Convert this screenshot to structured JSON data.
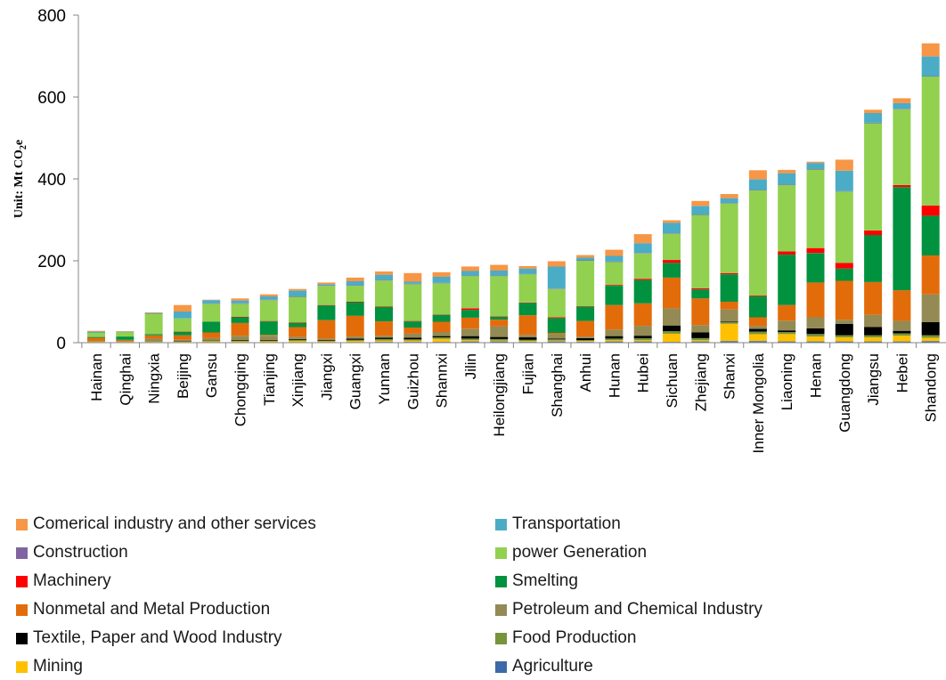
{
  "chart_data": {
    "type": "bar",
    "stacked": true,
    "ylabel": "Unit: Mt CO2e",
    "ylim": [
      0,
      800
    ],
    "yticks": [
      0,
      200,
      400,
      600,
      800
    ],
    "categories": [
      "Hainan",
      "Qinghai",
      "Ningxia",
      "Beijing",
      "Gansu",
      "Chongqing",
      "Tianjing",
      "Xinjiang",
      "Jiangxi",
      "Guangxi",
      "Yunnan",
      "Guizhou",
      "Shannxi",
      "Jilin",
      "Heilongjiang",
      "Fujian",
      "Shanghai",
      "Anhui",
      "Hunan",
      "Hubei",
      "Sichuan",
      "Zhejiang",
      "Shanxi",
      "Inner Mongolia",
      "Liaoning",
      "Henan",
      "Guangdong",
      "Jiangsu",
      "Hebei",
      "Shandong"
    ],
    "series": [
      {
        "name": "Agriculture",
        "color": "#3d6aa8",
        "values": [
          1,
          1,
          1,
          1,
          1,
          1,
          1,
          1,
          1,
          1,
          2,
          2,
          2,
          3,
          3,
          2,
          3,
          2,
          3,
          3,
          2,
          3,
          4,
          4,
          3,
          3,
          3,
          3,
          3,
          4
        ]
      },
      {
        "name": "Mining",
        "color": "#ffc000",
        "values": [
          1,
          1,
          1,
          1,
          2,
          2,
          2,
          3,
          2,
          3,
          3,
          3,
          7,
          3,
          2,
          2,
          2,
          2,
          3,
          3,
          20,
          3,
          42,
          17,
          18,
          12,
          10,
          10,
          14,
          8
        ]
      },
      {
        "name": "Food Production",
        "color": "#77933c",
        "values": [
          1,
          1,
          1,
          1,
          2,
          2,
          2,
          3,
          2,
          3,
          4,
          3,
          4,
          4,
          4,
          3,
          3,
          2,
          4,
          5,
          6,
          5,
          4,
          6,
          5,
          6,
          5,
          5,
          6,
          6
        ]
      },
      {
        "name": "Textile, Paper and Wood Industry",
        "color": "#000000",
        "values": [
          0,
          0,
          0,
          1,
          1,
          2,
          2,
          2,
          2,
          3,
          3,
          4,
          3,
          6,
          5,
          6,
          2,
          5,
          6,
          6,
          14,
          14,
          1,
          7,
          4,
          14,
          28,
          20,
          6,
          32
        ]
      },
      {
        "name": "Petroleum and Chemical Industry",
        "color": "#948a54",
        "values": [
          1,
          1,
          7,
          3,
          5,
          10,
          10,
          5,
          3,
          5,
          5,
          10,
          10,
          18,
          26,
          6,
          11,
          4,
          16,
          24,
          42,
          18,
          30,
          7,
          24,
          27,
          10,
          30,
          24,
          68
        ]
      },
      {
        "name": "Nonmetal and Metal Production",
        "color": "#e36c0a",
        "values": [
          8,
          3,
          8,
          11,
          14,
          31,
          2,
          24,
          45,
          51,
          35,
          15,
          25,
          27,
          16,
          48,
          3,
          38,
          60,
          55,
          75,
          65,
          19,
          21,
          38,
          85,
          95,
          80,
          75,
          95
        ]
      },
      {
        "name": "Smelting",
        "color": "#00923f",
        "values": [
          2,
          8,
          3,
          8,
          26,
          14,
          33,
          10,
          36,
          33,
          35,
          15,
          17,
          19,
          7,
          30,
          36,
          35,
          47,
          57,
          36,
          22,
          67,
          51,
          123,
          72,
          30,
          115,
          252,
          97
        ]
      },
      {
        "name": "Machinery",
        "color": "#ff0000",
        "values": [
          0,
          0,
          0,
          1,
          0,
          1,
          1,
          1,
          1,
          1,
          1,
          1,
          1,
          4,
          1,
          1,
          2,
          1,
          2,
          3,
          7,
          3,
          3,
          2,
          8,
          12,
          14,
          11,
          5,
          25
        ]
      },
      {
        "name": "power Generation",
        "color": "#92d050",
        "values": [
          10,
          11,
          50,
          32,
          44,
          32,
          51,
          63,
          47,
          39,
          64,
          90,
          76,
          79,
          99,
          69,
          69,
          111,
          56,
          62,
          64,
          179,
          170,
          257,
          162,
          192,
          174,
          262,
          185,
          315
        ]
      },
      {
        "name": "Construction",
        "color": "#8064a2",
        "values": [
          0,
          0,
          1,
          0,
          1,
          1,
          1,
          1,
          1,
          1,
          1,
          1,
          1,
          1,
          1,
          1,
          1,
          1,
          1,
          1,
          1,
          1,
          1,
          1,
          1,
          1,
          1,
          1,
          1,
          1
        ]
      },
      {
        "name": "Transportation",
        "color": "#4bacc6",
        "values": [
          3,
          1,
          1,
          17,
          8,
          7,
          8,
          14,
          3,
          10,
          13,
          5,
          15,
          11,
          12,
          13,
          54,
          7,
          14,
          24,
          26,
          21,
          12,
          26,
          28,
          15,
          50,
          24,
          14,
          48
        ]
      },
      {
        "name": "Comerical industry and other services",
        "color": "#f79646",
        "values": [
          2,
          1,
          1,
          16,
          1,
          5,
          5,
          4,
          4,
          9,
          8,
          21,
          11,
          11,
          14,
          6,
          13,
          6,
          15,
          22,
          6,
          12,
          10,
          22,
          8,
          3,
          27,
          8,
          12,
          32
        ]
      }
    ]
  },
  "legend": {
    "items": [
      {
        "label": "Comerical industry and other services",
        "color": "#f79646"
      },
      {
        "label": "Transportation",
        "color": "#4bacc6"
      },
      {
        "label": "Construction",
        "color": "#8064a2"
      },
      {
        "label": "power Generation",
        "color": "#92d050"
      },
      {
        "label": "Machinery",
        "color": "#ff0000"
      },
      {
        "label": "Smelting",
        "color": "#00923f"
      },
      {
        "label": "Nonmetal and Metal Production",
        "color": "#e36c0a"
      },
      {
        "label": "Petroleum and Chemical Industry",
        "color": "#948a54"
      },
      {
        "label": "Textile, Paper and Wood Industry",
        "color": "#000000"
      },
      {
        "label": "Food Production",
        "color": "#77933c"
      },
      {
        "label": "Mining",
        "color": "#ffc000"
      },
      {
        "label": "Agriculture",
        "color": "#3d6aa8"
      }
    ]
  }
}
